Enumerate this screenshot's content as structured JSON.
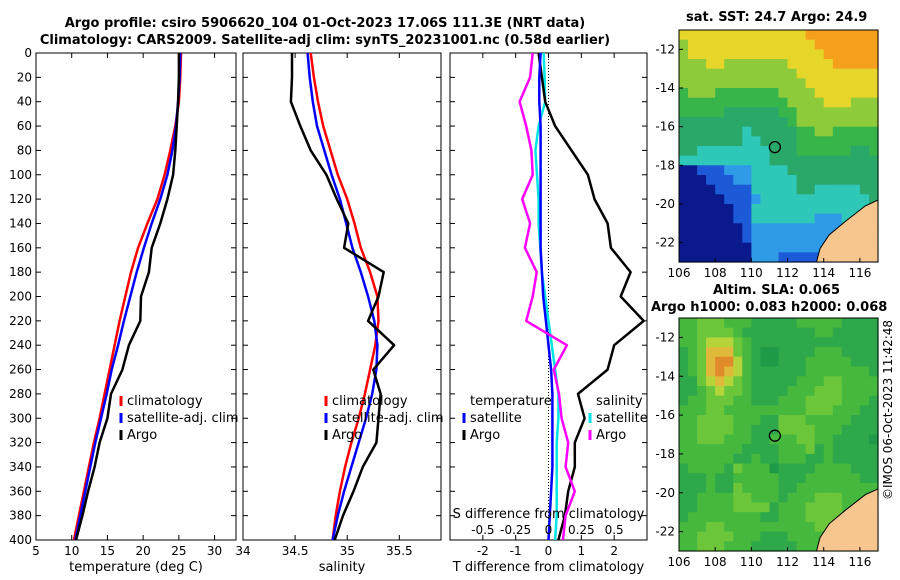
{
  "title_line1": "Argo profile: csiro 5906620_104 01-Oct-2023 17.06S 111.3E (NRT data)",
  "title_line2": "Climatology: CARS2009. Satellite-adj clim: synTS_20231001.nc (0.58d earlier)",
  "copyright": "©IMOS 06-Oct-2023 11:42:48",
  "colors": {
    "climatology": "#ff0000",
    "satellite": "#0000ff",
    "argo": "#000000",
    "t_diff": "#00e5e5",
    "s_diff": "#ff00ff"
  },
  "chart_data": [
    {
      "type": "line",
      "id": "temperature",
      "xlabel": "temperature (deg C)",
      "xlim": [
        5,
        33
      ],
      "xticks": [
        5,
        10,
        15,
        20,
        25,
        30
      ],
      "ylim": [
        0,
        400
      ],
      "yticks": [
        0,
        20,
        40,
        60,
        80,
        100,
        120,
        140,
        160,
        180,
        200,
        220,
        240,
        260,
        280,
        300,
        320,
        340,
        360,
        380,
        400
      ],
      "legend": [
        "climatology",
        "satellite-adj. clim",
        "Argo"
      ],
      "series": [
        {
          "name": "climatology",
          "x": [
            25.3,
            25.2,
            25.0,
            24.5,
            23.8,
            23.0,
            22.0,
            20.6,
            19.3,
            18.3,
            17.5,
            16.7,
            16.0,
            15.3,
            14.6,
            13.9,
            13.1,
            12.4,
            11.7,
            11.0,
            10.3
          ],
          "y": [
            0,
            20,
            40,
            60,
            80,
            100,
            120,
            140,
            160,
            180,
            200,
            220,
            240,
            260,
            280,
            300,
            320,
            340,
            360,
            380,
            400
          ]
        },
        {
          "name": "satellite-adj. clim",
          "x": [
            25.2,
            25.1,
            24.9,
            24.6,
            24.1,
            23.4,
            22.4,
            21.2,
            20.1,
            19.1,
            18.2,
            17.3,
            16.5,
            15.6,
            14.9,
            14.1,
            13.3,
            12.6,
            11.9,
            11.2,
            10.5
          ],
          "y": [
            0,
            20,
            40,
            60,
            80,
            100,
            120,
            140,
            160,
            180,
            200,
            220,
            240,
            260,
            280,
            300,
            320,
            340,
            360,
            380,
            400
          ]
        },
        {
          "name": "Argo",
          "x": [
            25.0,
            25.0,
            24.9,
            24.7,
            24.5,
            24.2,
            23.4,
            22.4,
            21.2,
            20.8,
            19.7,
            19.6,
            18.0,
            17.1,
            15.5,
            15.0,
            13.9,
            13.2,
            12.3,
            11.5,
            10.6
          ],
          "y": [
            0,
            20,
            40,
            60,
            80,
            100,
            120,
            140,
            160,
            180,
            200,
            220,
            240,
            260,
            280,
            300,
            320,
            340,
            360,
            380,
            400
          ]
        }
      ]
    },
    {
      "type": "line",
      "id": "salinity",
      "xlabel": "salinity",
      "xlim": [
        34,
        35.9
      ],
      "xticks": [
        34,
        34.5,
        35,
        35.5
      ],
      "ylim": [
        0,
        400
      ],
      "legend": [
        "climatology",
        "satellite-adj. clim",
        "Argo"
      ],
      "series": [
        {
          "name": "climatology",
          "x": [
            34.65,
            34.68,
            34.72,
            34.77,
            34.84,
            34.91,
            35.0,
            35.07,
            35.13,
            35.22,
            35.29,
            35.3,
            35.27,
            35.22,
            35.17,
            35.11,
            35.04,
            34.98,
            34.93,
            34.89,
            34.86
          ],
          "y": [
            0,
            20,
            40,
            60,
            80,
            100,
            120,
            140,
            160,
            180,
            200,
            220,
            240,
            260,
            280,
            300,
            320,
            340,
            360,
            380,
            400
          ]
        },
        {
          "name": "satellite-adj. clim",
          "x": [
            34.62,
            34.64,
            34.67,
            34.71,
            34.78,
            34.85,
            34.93,
            34.99,
            35.05,
            35.13,
            35.2,
            35.26,
            35.29,
            35.28,
            35.24,
            35.18,
            35.11,
            35.04,
            34.97,
            34.91,
            34.86
          ],
          "y": [
            0,
            20,
            40,
            60,
            80,
            100,
            120,
            140,
            160,
            180,
            200,
            220,
            240,
            260,
            280,
            300,
            320,
            340,
            360,
            380,
            400
          ]
        },
        {
          "name": "Argo",
          "x": [
            34.47,
            34.47,
            34.46,
            34.55,
            34.65,
            34.8,
            34.9,
            35.01,
            34.97,
            35.35,
            35.3,
            35.2,
            35.45,
            35.25,
            35.32,
            35.3,
            35.28,
            35.15,
            35.06,
            34.96,
            34.88
          ],
          "y": [
            0,
            20,
            40,
            60,
            80,
            100,
            120,
            140,
            160,
            180,
            200,
            220,
            240,
            260,
            280,
            300,
            320,
            340,
            360,
            380,
            400
          ]
        }
      ]
    },
    {
      "type": "line",
      "id": "difference",
      "xlabel": "T difference from climatology",
      "xlim": [
        -3,
        3
      ],
      "xticks": [
        -2,
        -1,
        0,
        1,
        2
      ],
      "top_xlabel": "S difference from climatology",
      "top_xtick_labels": [
        "-0.5",
        "-0.25",
        "0",
        "0.25",
        "0.5"
      ],
      "ylim": [
        0,
        400
      ],
      "legend_temperature_title": "temperature",
      "legend_salinity_title": "salinity",
      "legend_temperature": [
        "satellite",
        "Argo"
      ],
      "legend_salinity": [
        "satellite",
        "Argo"
      ],
      "series": [
        {
          "name": "T satellite",
          "x": [
            -0.15,
            -0.12,
            -0.1,
            -0.3,
            -0.4,
            -0.35,
            -0.3,
            -0.3,
            -0.25,
            -0.2,
            -0.1,
            0,
            0.1,
            0.2,
            0.3,
            0.3,
            0.25,
            0.25,
            0.25,
            0.25,
            0.2
          ],
          "y": [
            0,
            20,
            40,
            60,
            80,
            100,
            120,
            140,
            160,
            180,
            200,
            220,
            240,
            260,
            280,
            300,
            320,
            340,
            360,
            380,
            400
          ]
        },
        {
          "name": "T Argo",
          "x": [
            -0.3,
            -0.2,
            -0.1,
            0.2,
            0.7,
            1.2,
            1.4,
            1.8,
            1.9,
            2.5,
            2.2,
            2.9,
            2.0,
            1.8,
            0.9,
            1.1,
            0.8,
            0.8,
            0.6,
            0.5,
            0.3
          ],
          "y": [
            0,
            20,
            40,
            60,
            80,
            100,
            120,
            140,
            160,
            180,
            200,
            220,
            240,
            260,
            280,
            300,
            320,
            340,
            360,
            380,
            400
          ]
        },
        {
          "name": "S satellite",
          "x": [
            -0.06,
            -0.07,
            -0.07,
            -0.06,
            -0.06,
            -0.06,
            -0.06,
            -0.06,
            -0.06,
            -0.05,
            -0.04,
            -0.02,
            0.0,
            0.02,
            0.03,
            0.03,
            0.03,
            0.03,
            0.02,
            0.01,
            0.0
          ],
          "y": [
            0,
            20,
            40,
            60,
            80,
            100,
            120,
            140,
            160,
            180,
            200,
            220,
            240,
            260,
            280,
            300,
            320,
            340,
            360,
            380,
            400
          ]
        },
        {
          "name": "S Argo",
          "x": [
            -0.12,
            -0.14,
            -0.22,
            -0.17,
            -0.13,
            -0.12,
            -0.2,
            -0.14,
            -0.18,
            -0.09,
            -0.12,
            -0.17,
            0.14,
            0.04,
            0.08,
            0.1,
            0.15,
            0.13,
            0.2,
            0.13,
            0.11
          ],
          "y": [
            0,
            20,
            40,
            60,
            80,
            100,
            120,
            140,
            160,
            180,
            200,
            220,
            240,
            260,
            280,
            300,
            320,
            340,
            360,
            380,
            400
          ]
        }
      ]
    },
    {
      "type": "heatmap",
      "id": "sst_map",
      "title": "sat. SST: 24.7 Argo: 24.9",
      "xticks": [
        106,
        108,
        110,
        112,
        114,
        116
      ],
      "ytick_labels": [
        "-12",
        "-14",
        "-16",
        "-18",
        "-20",
        "-22"
      ],
      "xlim": [
        106,
        117
      ],
      "ylim": [
        -23,
        -11
      ],
      "marker": {
        "lon": 111.3,
        "lat": -17.06
      }
    },
    {
      "type": "heatmap",
      "id": "sla_map",
      "title_line1": "Altim. SLA: 0.065",
      "title_line2": "Argo h1000: 0.083 h2000: 0.068",
      "xticks": [
        106,
        108,
        110,
        112,
        114,
        116
      ],
      "ytick_labels": [
        "-12",
        "-14",
        "-16",
        "-18",
        "-20",
        "-22"
      ],
      "xlim": [
        106,
        117
      ],
      "ylim": [
        -23,
        -11
      ],
      "marker": {
        "lon": 111.3,
        "lat": -17.06
      }
    }
  ]
}
